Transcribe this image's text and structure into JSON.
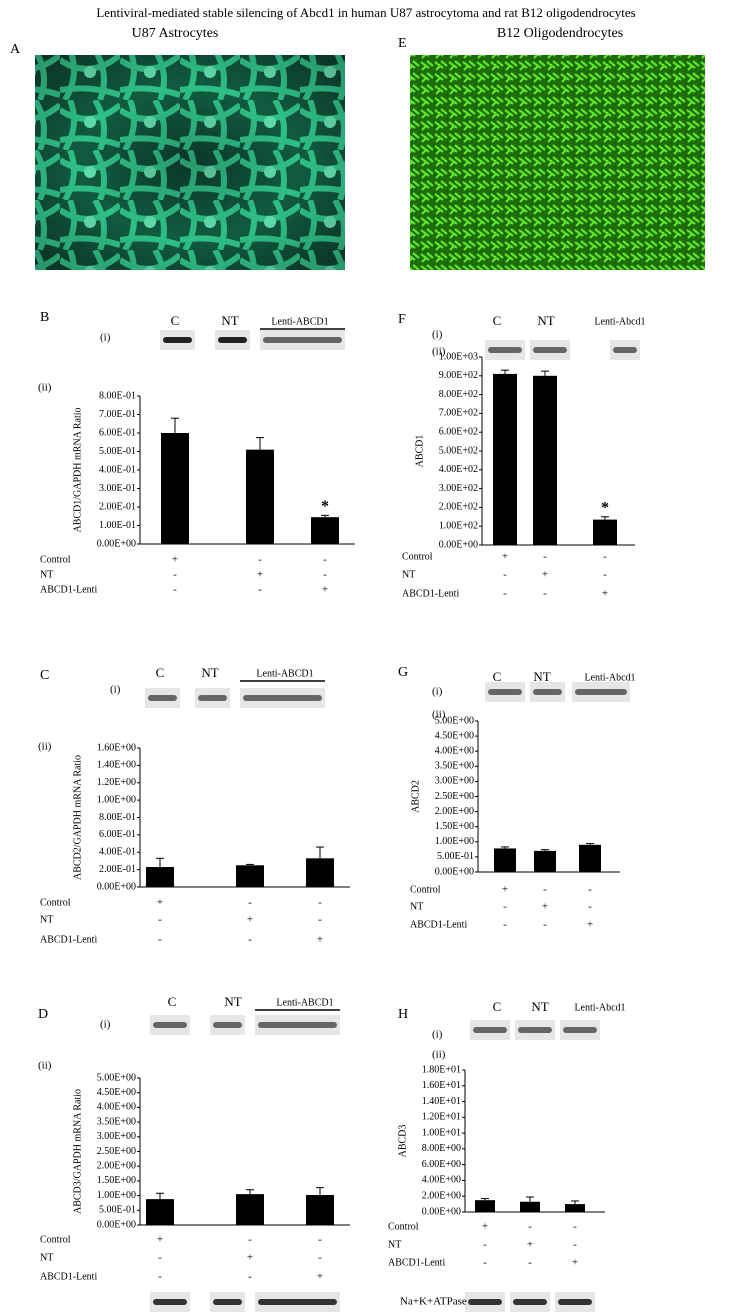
{
  "title": "Lentiviral-mediated stable silencing of Abcd1 in human U87 astrocytoma and rat B12 oligodendrocytes",
  "columns": [
    "U87 Astrocytes",
    "B12 Oligodendrocytes"
  ],
  "images": [
    {
      "letter": "A"
    },
    {
      "letter": "E"
    }
  ],
  "loading_control": "Na+K+ATPase",
  "panels": [
    {
      "letter": "B",
      "blot_index": "(i)",
      "chart_index": "(ii)",
      "blot_labels": [
        "C",
        "NT",
        "Lenti-ABCD1"
      ],
      "chart": {
        "type": "bar",
        "ylabel": "ABCD1/GAPDH mRNA Ratio",
        "values": [
          0.6,
          0.51,
          0.145
        ],
        "errors": [
          0.08,
          0.065,
          0.01
        ],
        "star_labels": [
          null,
          null,
          "*"
        ],
        "color": "#000000",
        "ylim": [
          0,
          0.8
        ],
        "yticks": [
          {
            "value": 0,
            "label": "0.00E+00"
          },
          {
            "value": 0.1,
            "label": "1.00E-01"
          },
          {
            "value": 0.2,
            "label": "2.00E-01"
          },
          {
            "value": 0.3,
            "label": "3.00E-01"
          },
          {
            "value": 0.4,
            "label": "4.00E-01"
          },
          {
            "value": 0.5,
            "label": "5.00E-01"
          },
          {
            "value": 0.6,
            "label": "6.00E-01"
          },
          {
            "value": 0.7,
            "label": "7.00E-01"
          },
          {
            "value": 0.8,
            "label": "8.00E-01"
          }
        ]
      },
      "rows": [
        {
          "name": "Control",
          "signs": [
            "+",
            "-",
            "-"
          ]
        },
        {
          "name": "NT",
          "signs": [
            "-",
            "+",
            "-"
          ]
        },
        {
          "name": "ABCD1-Lenti",
          "signs": [
            "-",
            "-",
            "+"
          ]
        }
      ]
    },
    {
      "letter": "F",
      "blot_index": "(i)",
      "chart_index": "(ii)",
      "blot_labels": [
        "C",
        "NT",
        "Lenti-Abcd1"
      ],
      "chart": {
        "type": "bar",
        "ylabel": "ABCD1",
        "values": [
          910,
          900,
          135
        ],
        "errors": [
          20,
          25,
          15
        ],
        "star_labels": [
          null,
          null,
          "*"
        ],
        "color": "#000000",
        "ylim": [
          0,
          1000
        ],
        "yticks": [
          {
            "value": 0,
            "label": "0.00E+00"
          },
          {
            "value": 100,
            "label": "1.00E+02"
          },
          {
            "value": 200,
            "label": "2.00E+02"
          },
          {
            "value": 300,
            "label": "3.00E+02"
          },
          {
            "value": 400,
            "label": "4.00E+02"
          },
          {
            "value": 500,
            "label": "5.00E+02"
          },
          {
            "value": 600,
            "label": "6.00E+02"
          },
          {
            "value": 700,
            "label": "7.00E+02"
          },
          {
            "value": 800,
            "label": "8.00E+02"
          },
          {
            "value": 900,
            "label": "9.00E+02"
          },
          {
            "value": 1000,
            "label": "1.00E+03"
          }
        ]
      },
      "rows": [
        {
          "name": "Control",
          "signs": [
            "+",
            "-",
            "-"
          ]
        },
        {
          "name": "NT",
          "signs": [
            "-",
            "+",
            "-"
          ]
        },
        {
          "name": "ABCD1-Lenti",
          "signs": [
            "-",
            "-",
            "+"
          ]
        }
      ]
    },
    {
      "letter": "C",
      "blot_index": "(i)",
      "chart_index": "(ii)",
      "blot_labels": [
        "C",
        "NT",
        "Lenti-ABCD1"
      ],
      "chart": {
        "type": "bar",
        "ylabel": "ABCD2/GAPDH mRNA Ratio",
        "values": [
          0.23,
          0.25,
          0.33
        ],
        "errors": [
          0.1,
          0.01,
          0.13
        ],
        "color": "#000000",
        "ylim": [
          0,
          1.6
        ],
        "yticks": [
          {
            "value": 0,
            "label": "0.00E+00"
          },
          {
            "value": 0.2,
            "label": "2.00E-01"
          },
          {
            "value": 0.4,
            "label": "4.00E-01"
          },
          {
            "value": 0.6,
            "label": "6.00E-01"
          },
          {
            "value": 0.8,
            "label": "8.00E-01"
          },
          {
            "value": 1,
            "label": "1.00E+00"
          },
          {
            "value": 1.2,
            "label": "1.20E+00"
          },
          {
            "value": 1.4,
            "label": "1.40E+00"
          },
          {
            "value": 1.6,
            "label": "1.60E+00"
          }
        ]
      },
      "rows": [
        {
          "name": "Control",
          "signs": [
            "+",
            "-",
            "-"
          ]
        },
        {
          "name": "NT",
          "signs": [
            "-",
            "+",
            "-"
          ]
        },
        {
          "name": "ABCD1-Lenti",
          "signs": [
            "-",
            "-",
            "+"
          ]
        }
      ]
    },
    {
      "letter": "G",
      "blot_index": "(i)",
      "chart_index": "(ii)",
      "blot_labels": [
        "C",
        "NT",
        "Lenti-Abcd1"
      ],
      "chart": {
        "type": "bar",
        "ylabel": "ABCD2",
        "values": [
          0.78,
          0.7,
          0.9
        ],
        "errors": [
          0.05,
          0.04,
          0.04
        ],
        "color": "#000000",
        "ylim": [
          0,
          5
        ],
        "yticks": [
          {
            "value": 0,
            "label": "0.00E+00"
          },
          {
            "value": 0.5,
            "label": "5.00E-01"
          },
          {
            "value": 1,
            "label": "1.00E+00"
          },
          {
            "value": 1.5,
            "label": "1.50E+00"
          },
          {
            "value": 2,
            "label": "2.00E+00"
          },
          {
            "value": 2.5,
            "label": "2.50E+00"
          },
          {
            "value": 3,
            "label": "3.00E+00"
          },
          {
            "value": 3.5,
            "label": "3.50E+00"
          },
          {
            "value": 4,
            "label": "4.00E+00"
          },
          {
            "value": 4.5,
            "label": "4.50E+00"
          },
          {
            "value": 5,
            "label": "5.00E+00"
          }
        ]
      },
      "rows": [
        {
          "name": "Control",
          "signs": [
            "+",
            "-",
            "-"
          ]
        },
        {
          "name": "NT",
          "signs": [
            "-",
            "+",
            "-"
          ]
        },
        {
          "name": "ABCD1-Lenti",
          "signs": [
            "-",
            "-",
            "+"
          ]
        }
      ]
    },
    {
      "letter": "D",
      "blot_index": "(i)",
      "chart_index": "(ii)",
      "blot_labels": [
        "C",
        "NT",
        "Lenti-ABCD1"
      ],
      "chart": {
        "type": "bar",
        "ylabel": "ABCD3/GAPDH mRNA Ratio",
        "values": [
          0.88,
          1.05,
          1.02
        ],
        "errors": [
          0.2,
          0.15,
          0.25
        ],
        "color": "#000000",
        "ylim": [
          0,
          5
        ],
        "yticks": [
          {
            "value": 0,
            "label": "0.00E+00"
          },
          {
            "value": 0.5,
            "label": "5.00E-01"
          },
          {
            "value": 1,
            "label": "1.00E+00"
          },
          {
            "value": 1.5,
            "label": "1.50E+00"
          },
          {
            "value": 2,
            "label": "2.00E+00"
          },
          {
            "value": 2.5,
            "label": "2.50E+00"
          },
          {
            "value": 3,
            "label": "3.00E+00"
          },
          {
            "value": 3.5,
            "label": "3.50E+00"
          },
          {
            "value": 4,
            "label": "4.00E+00"
          },
          {
            "value": 4.5,
            "label": "4.50E+00"
          },
          {
            "value": 5,
            "label": "5.00E+00"
          }
        ]
      },
      "rows": [
        {
          "name": "Control",
          "signs": [
            "+",
            "-",
            "-"
          ]
        },
        {
          "name": "NT",
          "signs": [
            "-",
            "+",
            "-"
          ]
        },
        {
          "name": "ABCD1-Lenti",
          "signs": [
            "-",
            "-",
            "+"
          ]
        }
      ]
    },
    {
      "letter": "H",
      "blot_index": "(i)",
      "chart_index": "(ii)",
      "blot_labels": [
        "C",
        "NT",
        "Lenti-Abcd1"
      ],
      "chart": {
        "type": "bar",
        "ylabel": "ABCD3",
        "values": [
          1.5,
          1.3,
          1.0
        ],
        "errors": [
          0.2,
          0.6,
          0.4
        ],
        "color": "#000000",
        "ylim": [
          0,
          18
        ],
        "yticks": [
          {
            "value": 0,
            "label": "0.00E+00"
          },
          {
            "value": 2,
            "label": "2.00E+00"
          },
          {
            "value": 4,
            "label": "4.00E+00"
          },
          {
            "value": 6,
            "label": "6.00E+00"
          },
          {
            "value": 8,
            "label": "8.00E+00"
          },
          {
            "value": 10,
            "label": "1.00E+01"
          },
          {
            "value": 12,
            "label": "1.20E+01"
          },
          {
            "value": 14,
            "label": "1.40E+01"
          },
          {
            "value": 16,
            "label": "1.60E+01"
          },
          {
            "value": 18,
            "label": "1.80E+01"
          }
        ]
      },
      "rows": [
        {
          "name": "Control",
          "signs": [
            "+",
            "-",
            "-"
          ]
        },
        {
          "name": "NT",
          "signs": [
            "-",
            "+",
            "-"
          ]
        },
        {
          "name": "ABCD1-Lenti",
          "signs": [
            "-",
            "-",
            "+"
          ]
        }
      ]
    }
  ]
}
